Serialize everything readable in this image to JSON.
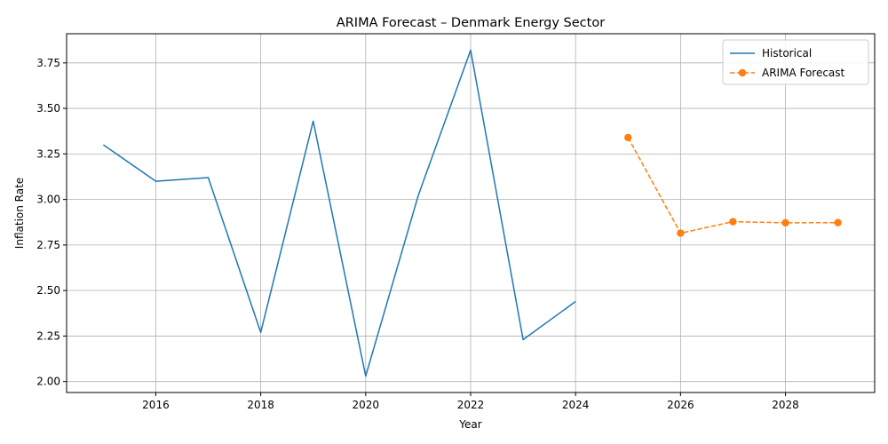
{
  "chart_data": {
    "type": "line",
    "title": "ARIMA Forecast – Denmark Energy Sector",
    "xlabel": "Year",
    "ylabel": "Inflation Rate",
    "xlim": [
      2014.3,
      2029.7
    ],
    "ylim": [
      1.94,
      3.91
    ],
    "xticks": [
      2016,
      2018,
      2020,
      2022,
      2024,
      2026,
      2028
    ],
    "yticks": [
      2.0,
      2.25,
      2.5,
      2.75,
      3.0,
      3.25,
      3.5,
      3.75
    ],
    "grid": true,
    "legend_position": "top-right",
    "series": [
      {
        "name": "Historical",
        "style": "solid",
        "color": "#1f77b4",
        "x": [
          2015,
          2016,
          2017,
          2018,
          2019,
          2020,
          2021,
          2022,
          2023,
          2024
        ],
        "y": [
          3.3,
          3.1,
          3.12,
          2.27,
          3.43,
          2.03,
          3.02,
          3.82,
          2.23,
          2.44
        ]
      },
      {
        "name": "ARIMA Forecast",
        "style": "dashed-markers",
        "color": "#ff7f0e",
        "x": [
          2025,
          2026,
          2027,
          2028,
          2029
        ],
        "y": [
          3.34,
          2.815,
          2.878,
          2.872,
          2.873
        ]
      }
    ]
  }
}
